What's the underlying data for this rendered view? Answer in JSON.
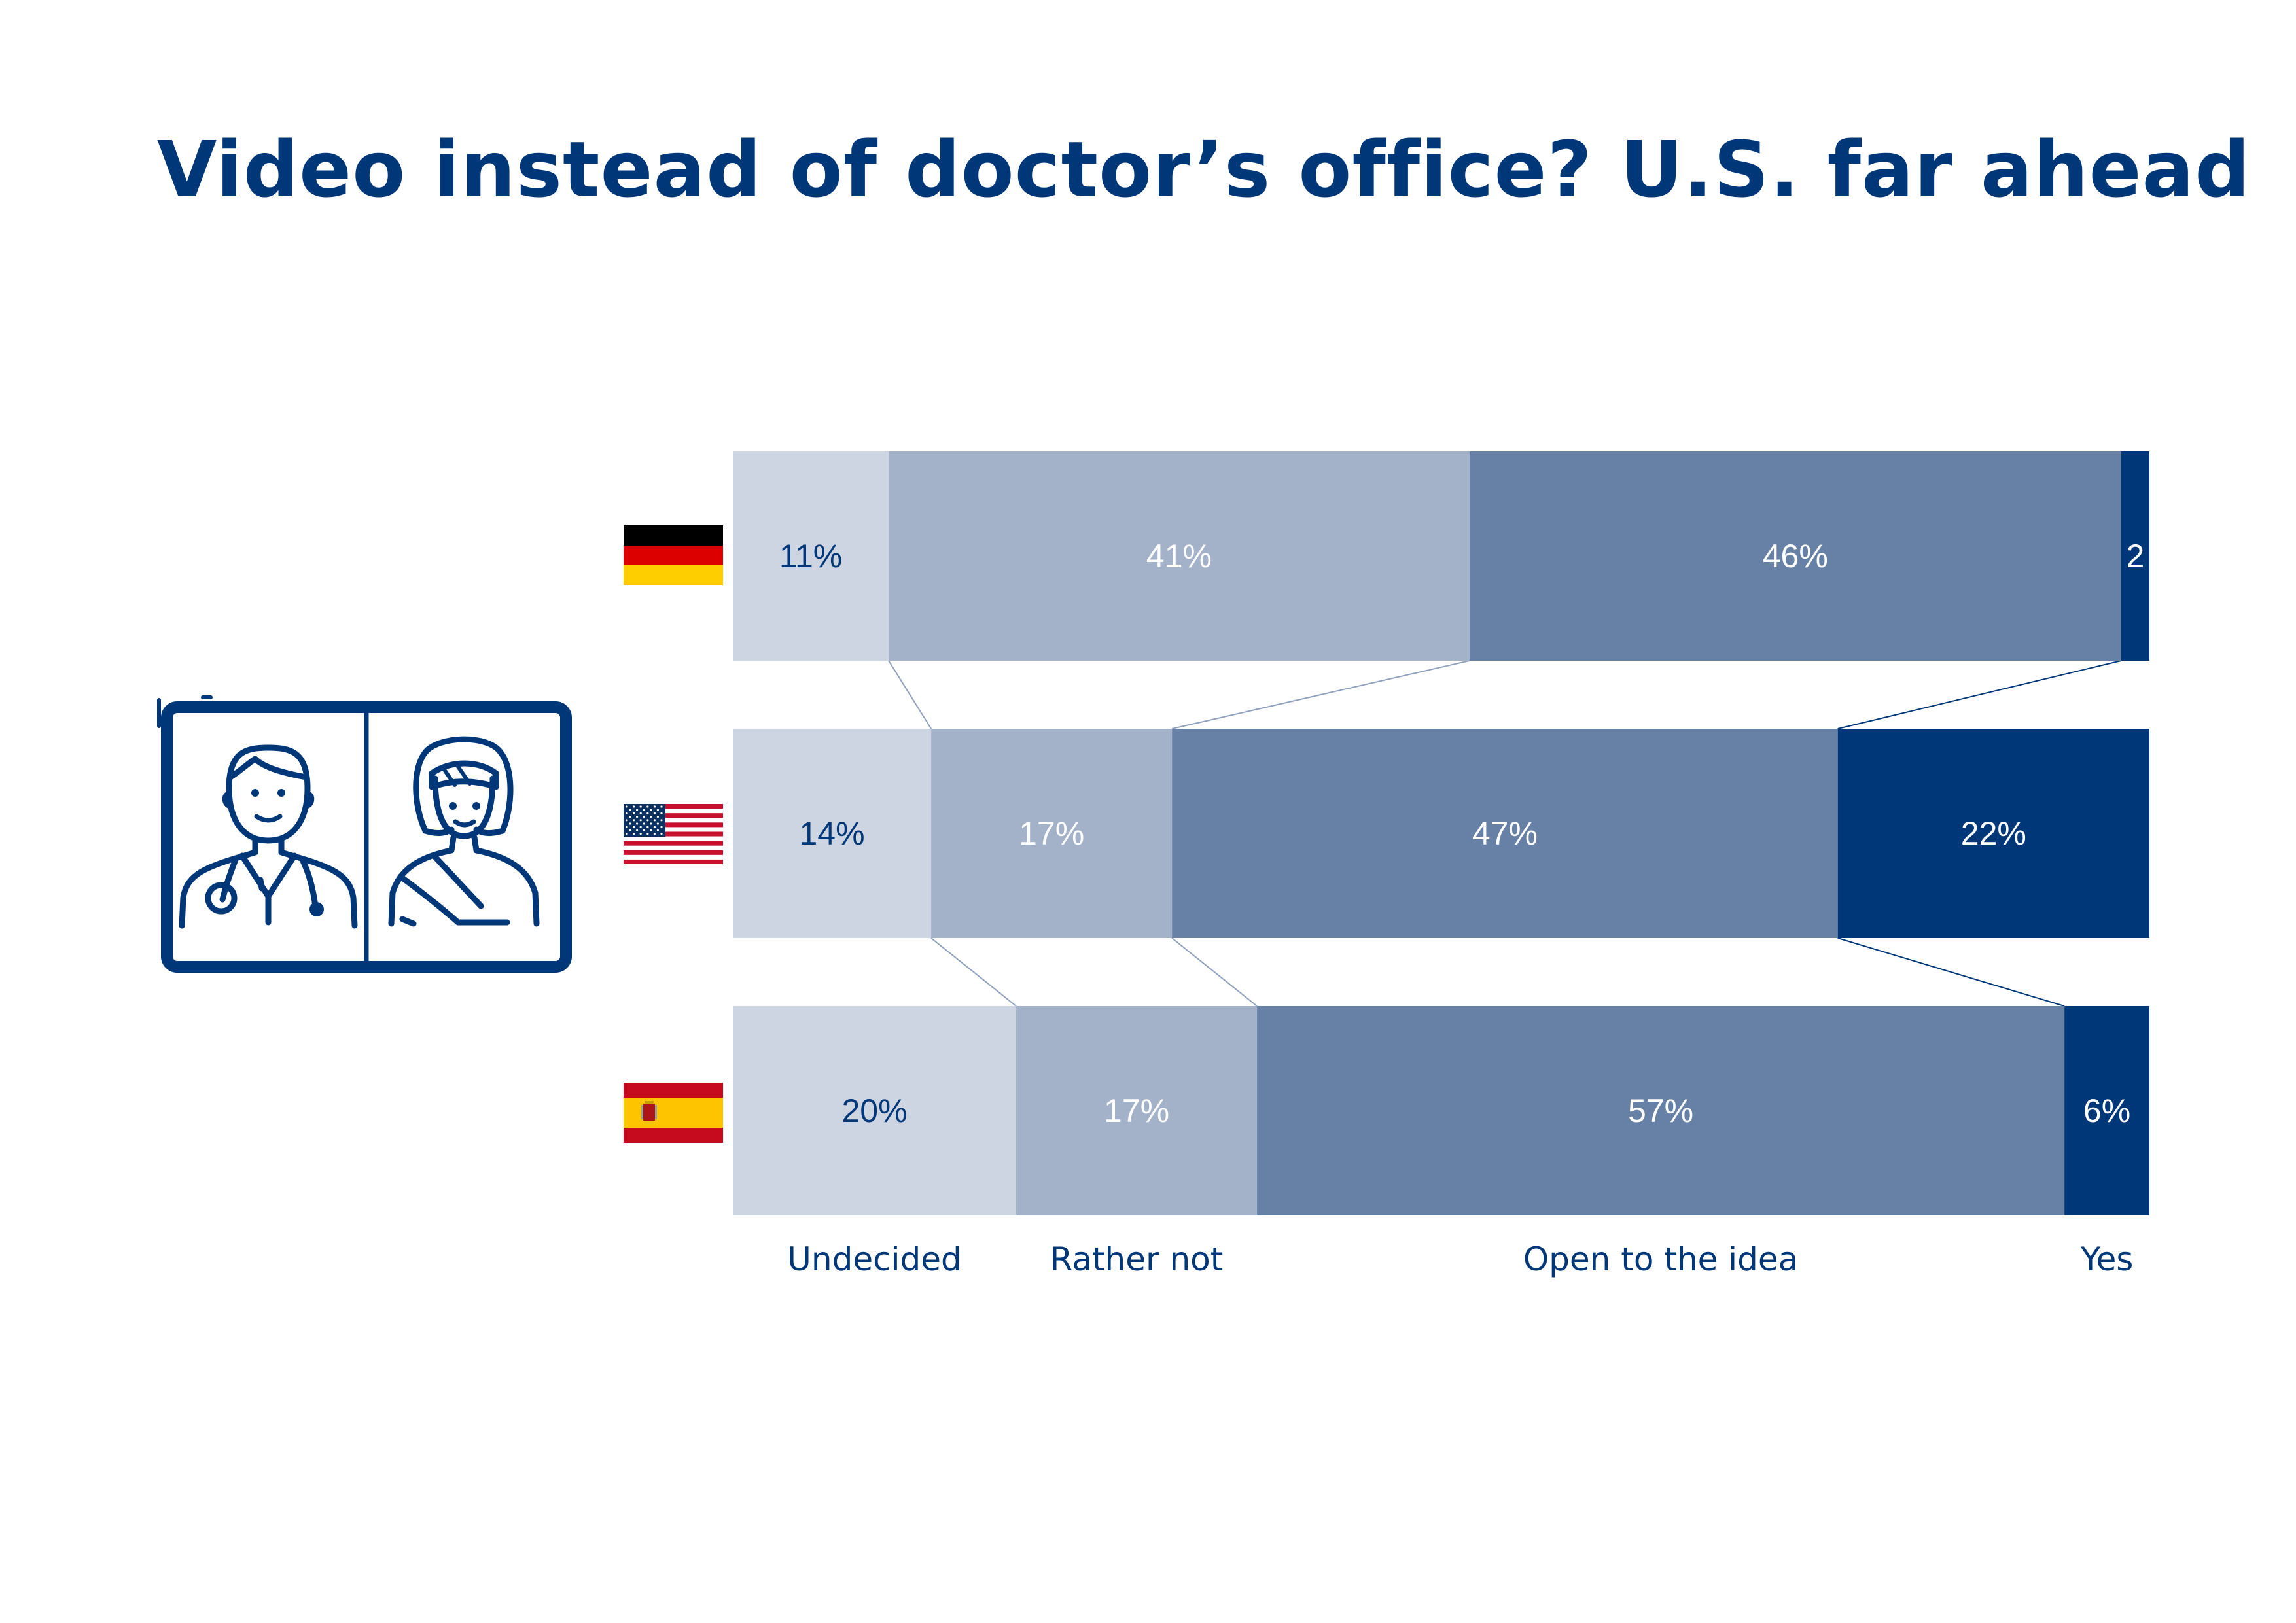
{
  "chart_data": {
    "type": "bar",
    "orientation": "horizontal",
    "stacked": true,
    "title": "Video instead of doctor’s office? U.S. far ahead",
    "categories": [
      "Germany",
      "United States",
      "Spain"
    ],
    "category_icons": [
      "germany-flag-icon",
      "us-flag-icon",
      "spain-flag-icon"
    ],
    "illustration_icon": "video-call-doctor-patient-icon",
    "series": [
      {
        "name": "Undecided",
        "values": [
          11,
          14,
          20
        ],
        "labels": [
          "11%",
          "14%",
          "20%"
        ],
        "color": "#cdd4e2",
        "label_color": "#003778"
      },
      {
        "name": "Rather not",
        "values": [
          41,
          17,
          17
        ],
        "labels": [
          "41%",
          "17%",
          "17%"
        ],
        "color": "#a3b1c9",
        "label_color": "#ffffff"
      },
      {
        "name": "Open to the idea",
        "values": [
          46,
          47,
          57
        ],
        "labels": [
          "46%",
          "47%",
          "57%"
        ],
        "color": "#6780a5",
        "label_color": "#ffffff"
      },
      {
        "name": "Yes",
        "values": [
          2,
          22,
          6
        ],
        "labels": [
          "2",
          "22%",
          "6%"
        ],
        "color": "#003778",
        "label_color": "#ffffff"
      }
    ],
    "xlim": [
      0,
      100
    ],
    "grid": false,
    "legend": "bottom",
    "colors": {
      "title": "#003778",
      "connector": "#8fa0bd",
      "connector_dark": "#003778"
    }
  }
}
